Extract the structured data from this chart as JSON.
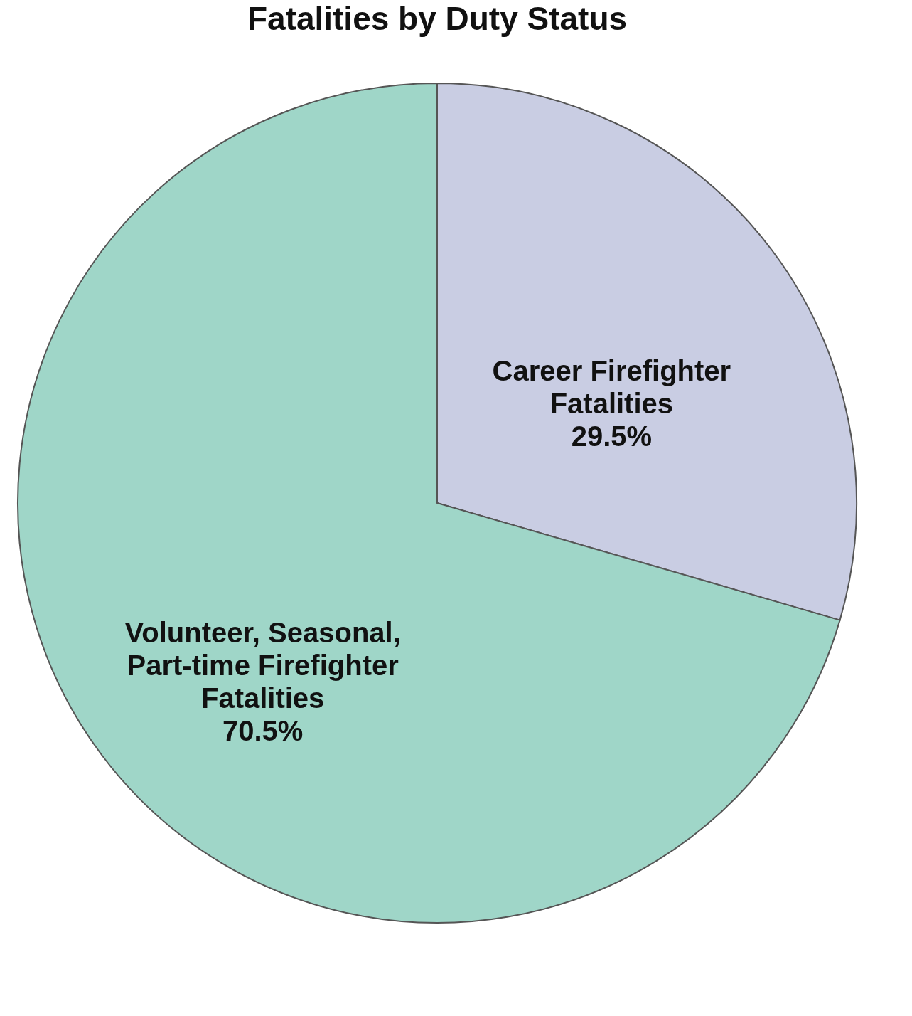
{
  "chart_data": {
    "type": "pie",
    "title": "Fatalities by Duty Status",
    "categories": [
      "Career Firefighter Fatalities",
      "Volunteer, Seasonal, Part-time Firefighter Fatalities"
    ],
    "values": [
      29.5,
      70.5
    ],
    "colors": [
      "#c9cde3",
      "#9fd6c8"
    ],
    "value_labels": [
      "29.5%",
      "70.5%"
    ],
    "legend": false
  }
}
